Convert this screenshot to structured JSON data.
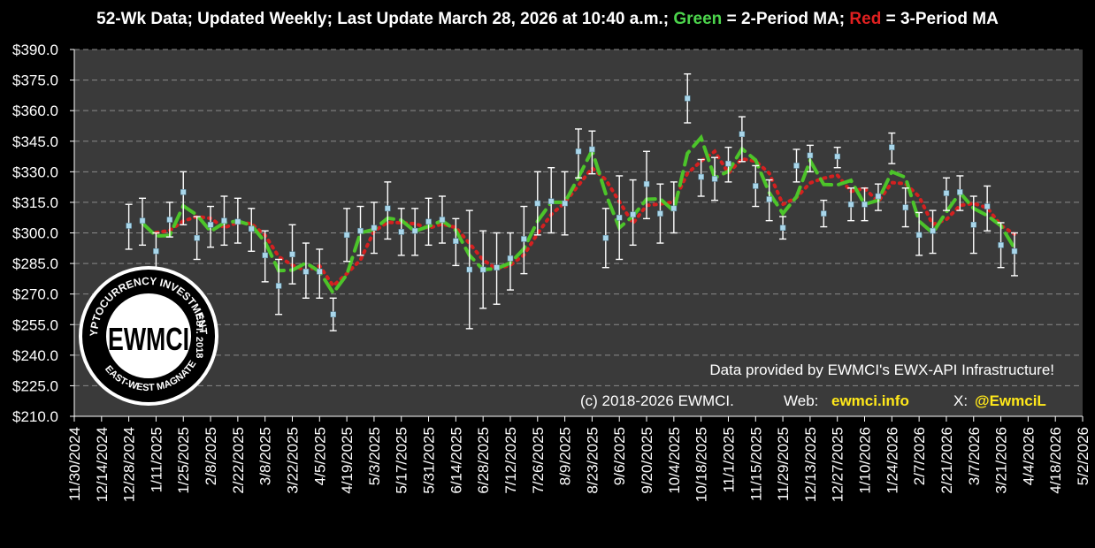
{
  "header": {
    "prefix": "52-Wk Data; Updated Weekly; Last Update March 28, 2026 at 10:40 a.m.;",
    "green_word": "Green",
    "green_desc": "= 2-Period MA;",
    "red_word": "Red",
    "red_desc": "= 3-Period MA"
  },
  "notes": {
    "provided": "Data provided by EWMCI's EWX-API Infrastructure!",
    "copyright": "(c) 2018-2026 EWMCI.",
    "web_label": "Web:",
    "web_value": "ewmci.info",
    "x_label": "X:",
    "x_value": "@EwmciL"
  },
  "logo": {
    "monogram": "EWMCI",
    "ring_top": "CRYPTOCURRENCY INVESTMENTS",
    "ring_right": "EST. 2018",
    "ring_bottom": "EAST-WEST MAGNATE"
  },
  "colors": {
    "background": "#000000",
    "plot_area": "#3a3a3a",
    "gridline": "#8a8a8a",
    "point": "#a9d6ea",
    "error_bar": "#ffffff",
    "ma2": "#4cc42a",
    "ma3": "#d42020",
    "accent_yellow": "#ffe81a"
  },
  "chart_data": {
    "type": "scatter",
    "x_kind": "date",
    "yticks": [
      "$210.0",
      "$225.0",
      "$240.0",
      "$255.0",
      "$270.0",
      "$285.0",
      "$300.0",
      "$315.0",
      "$330.0",
      "$345.0",
      "$360.0",
      "$375.0",
      "$390.0"
    ],
    "ylim": [
      210,
      390
    ],
    "xlim": [
      "2024-11-30",
      "2026-05-02"
    ],
    "xticks": [
      "11/30/2024",
      "12/14/2024",
      "12/28/2024",
      "1/11/2025",
      "1/25/2025",
      "2/8/2025",
      "2/22/2025",
      "3/8/2025",
      "3/22/2025",
      "4/5/2025",
      "4/19/2025",
      "5/3/2025",
      "5/17/2025",
      "5/31/2025",
      "6/14/2025",
      "6/28/2025",
      "7/12/2025",
      "7/26/2025",
      "8/9/2025",
      "8/23/2025",
      "9/6/2025",
      "9/20/2025",
      "10/4/2025",
      "10/18/2025",
      "11/1/2025",
      "11/15/2025",
      "11/29/2025",
      "12/13/2025",
      "12/27/2025",
      "1/10/2026",
      "1/24/2026",
      "2/7/2026",
      "2/21/2026",
      "3/7/2026",
      "3/21/2026",
      "4/4/2026",
      "4/18/2026",
      "5/2/2026"
    ],
    "grid": true,
    "series": [
      {
        "x": [
          "2024-12-28",
          "2025-01-04",
          "2025-01-11",
          "2025-01-18",
          "2025-01-25",
          "2025-02-01",
          "2025-02-08",
          "2025-02-15",
          "2025-02-22",
          "2025-03-01",
          "2025-03-08",
          "2025-03-15",
          "2025-03-22",
          "2025-03-29",
          "2025-04-05",
          "2025-04-12",
          "2025-04-19",
          "2025-04-26",
          "2025-05-03",
          "2025-05-10",
          "2025-05-17",
          "2025-05-24",
          "2025-05-31",
          "2025-06-07",
          "2025-06-14",
          "2025-06-21",
          "2025-06-28",
          "2025-07-05",
          "2025-07-12",
          "2025-07-19",
          "2025-07-26",
          "2025-08-02",
          "2025-08-09",
          "2025-08-16",
          "2025-08-23",
          "2025-08-30",
          "2025-09-06",
          "2025-09-13",
          "2025-09-20",
          "2025-09-27",
          "2025-10-04",
          "2025-10-11",
          "2025-10-18",
          "2025-10-25",
          "2025-11-01",
          "2025-11-08",
          "2025-11-15",
          "2025-11-22",
          "2025-11-29",
          "2025-12-06",
          "2025-12-13",
          "2025-12-20",
          "2025-12-27",
          "2026-01-03",
          "2026-01-10",
          "2026-01-17",
          "2026-01-24",
          "2026-01-31",
          "2026-02-07",
          "2026-02-14",
          "2026-02-21",
          "2026-02-28",
          "2026-03-07",
          "2026-03-14",
          "2026-03-21",
          "2026-03-28"
        ],
        "values": [
          303.5,
          306,
          291,
          306.5,
          320,
          297.5,
          304,
          306,
          305.5,
          302,
          289,
          274,
          289.5,
          281,
          281,
          260,
          299,
          301,
          302.5,
          312,
          300.5,
          301,
          305.5,
          306.5,
          296,
          282,
          282,
          283,
          287.5,
          297,
          314.5,
          315.5,
          314.5,
          340,
          341,
          297.5,
          307.5,
          309,
          324,
          309.5,
          312,
          366,
          327.5,
          326.5,
          334,
          348.5,
          323,
          316.5,
          302.5,
          333,
          338,
          309.5,
          337.5,
          314,
          314,
          318,
          342,
          312.5,
          299,
          301,
          319.5,
          320,
          304,
          313,
          294,
          291
        ],
        "err_low": [
          292,
          294,
          282,
          298,
          304,
          287,
          293,
          294,
          295,
          291,
          276,
          260,
          275,
          268,
          268,
          252,
          286,
          289,
          290,
          297,
          289,
          289,
          294,
          295,
          284,
          253,
          263,
          265,
          272,
          280,
          299,
          300,
          299,
          327,
          329,
          283,
          287,
          294,
          307,
          295,
          300,
          354,
          318,
          316,
          325,
          335,
          313,
          306,
          297,
          325,
          330,
          303,
          332,
          306,
          306,
          311,
          334,
          303,
          289,
          290,
          311,
          311,
          290,
          301,
          283,
          279
        ],
        "err_high": [
          314,
          317,
          300,
          315,
          330,
          308,
          313,
          318,
          317,
          312,
          301,
          287,
          304,
          295,
          292,
          268,
          312,
          313,
          315,
          325,
          312,
          312,
          317,
          318,
          307,
          311,
          301,
          300,
          300,
          313,
          330,
          332,
          330,
          351,
          350,
          312,
          328,
          326,
          340,
          324,
          325,
          378,
          336,
          337,
          342,
          357,
          333,
          326,
          308,
          341,
          343,
          316,
          342,
          322,
          322,
          324,
          349,
          322,
          310,
          311,
          327,
          328,
          318,
          323,
          305,
          300
        ]
      }
    ],
    "ma2_name": "2-Period MA",
    "ma3_name": "3-Period MA"
  }
}
